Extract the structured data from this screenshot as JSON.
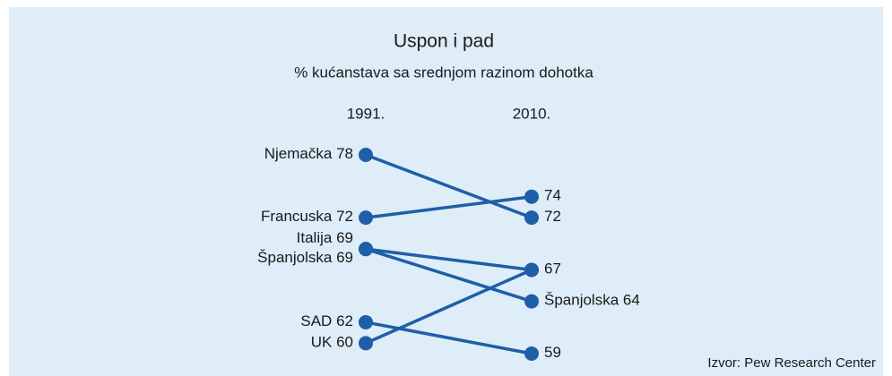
{
  "chart_data": {
    "type": "slope",
    "title": "Uspon i pad",
    "subtitle": "% kućanstava sa srednjom razinom dohotka",
    "categories": [
      "1991.",
      "2010."
    ],
    "color": "#1f5ea8",
    "series": [
      {
        "name": "Njemačka",
        "values": [
          78,
          72
        ],
        "show_name_end": false,
        "show_end_value": true
      },
      {
        "name": "Francuska",
        "values": [
          72,
          74
        ],
        "show_name_end": false,
        "show_end_value": true
      },
      {
        "name": "Italija",
        "values": [
          69,
          67
        ],
        "show_name_end": false,
        "show_end_value": true
      },
      {
        "name": "Španjolska",
        "values": [
          69,
          64
        ],
        "show_name_end": true,
        "show_end_value": true
      },
      {
        "name": "SAD",
        "values": [
          62,
          59
        ],
        "show_name_end": false,
        "show_end_value": true
      },
      {
        "name": "UK",
        "values": [
          60,
          67
        ],
        "show_name_end": false,
        "show_end_value": false
      }
    ],
    "source": "Izvor: Pew Research Center"
  }
}
